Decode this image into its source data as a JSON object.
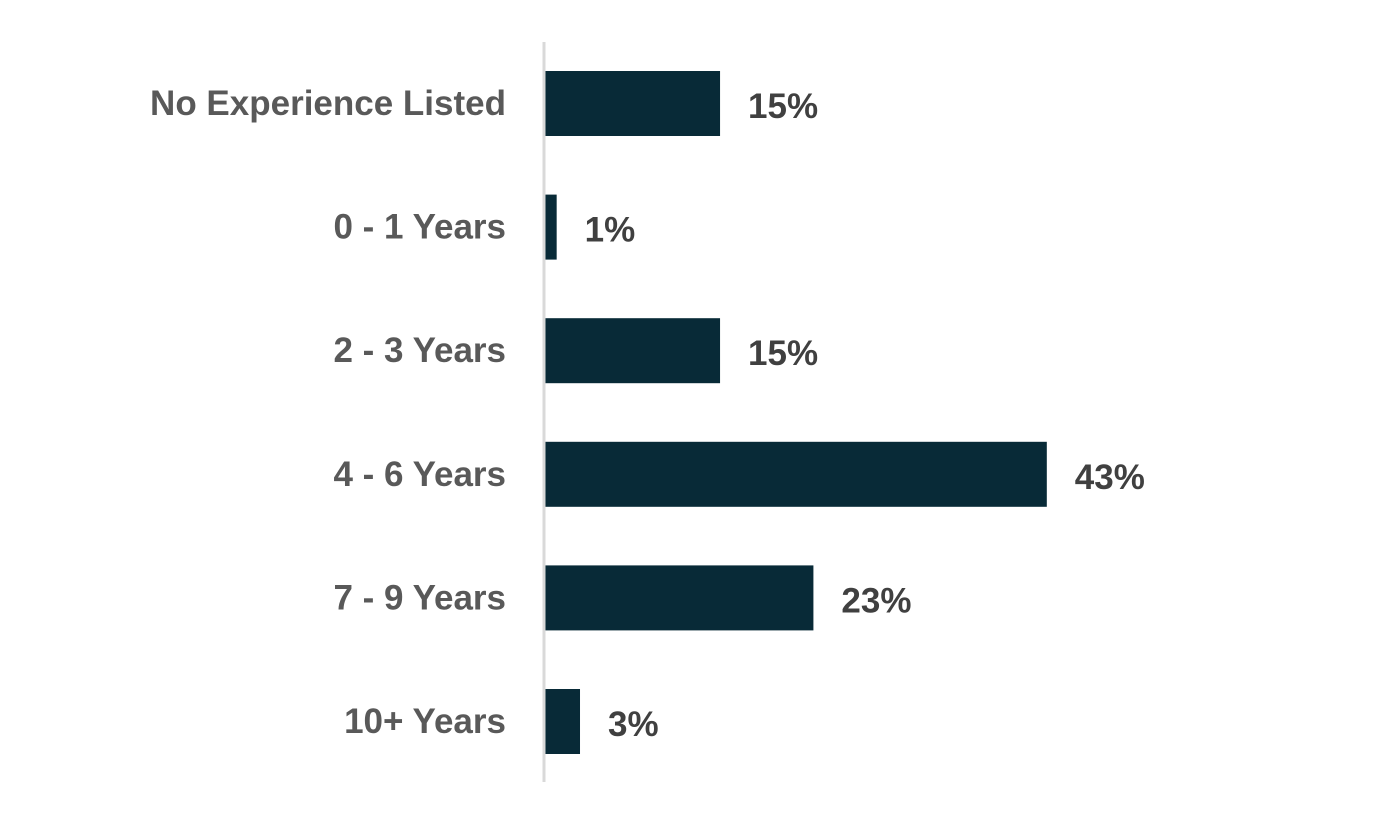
{
  "chart_data": {
    "type": "bar",
    "orientation": "horizontal",
    "categories": [
      "No Experience Listed",
      "0 - 1 Years",
      "2 - 3 Years",
      "4 - 6 Years",
      "7 - 9 Years",
      "10+ Years"
    ],
    "values": [
      15,
      1,
      15,
      43,
      23,
      3
    ],
    "value_labels": [
      "15%",
      "1%",
      "15%",
      "43%",
      "23%",
      "3%"
    ],
    "unit": "%",
    "xlim": [
      0,
      50
    ],
    "grid": false,
    "legend": "none",
    "colors": {
      "bar": "#082a37",
      "axis": "#d9d9d9",
      "category_text": "#595959",
      "value_text": "#404040"
    }
  }
}
